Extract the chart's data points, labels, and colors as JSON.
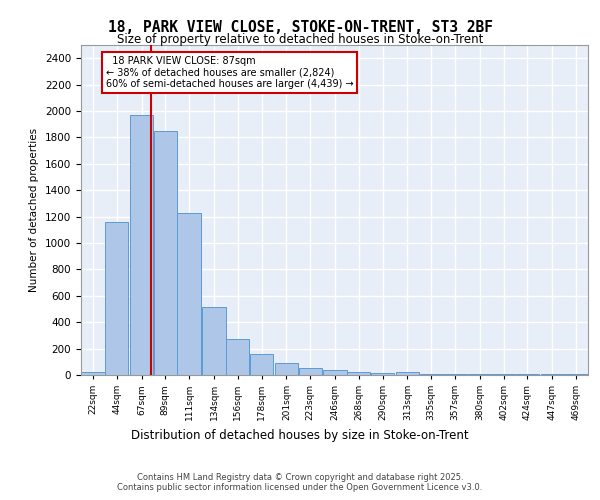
{
  "title_line1": "18, PARK VIEW CLOSE, STOKE-ON-TRENT, ST3 2BF",
  "title_line2": "Size of property relative to detached houses in Stoke-on-Trent",
  "xlabel": "Distribution of detached houses by size in Stoke-on-Trent",
  "ylabel": "Number of detached properties",
  "annotation_line1": "  18 PARK VIEW CLOSE: 87sqm  ",
  "annotation_line2": "← 38% of detached houses are smaller (2,824)",
  "annotation_line3": "60% of semi-detached houses are larger (4,439) →",
  "footer_line1": "Contains HM Land Registry data © Crown copyright and database right 2025.",
  "footer_line2": "Contains public sector information licensed under the Open Government Licence v3.0.",
  "bar_color": "#aec6e8",
  "bar_edge_color": "#5b9bd5",
  "background_color": "#e8eef8",
  "grid_color": "#ffffff",
  "vline_color": "#cc0000",
  "vline_x": 87,
  "categories": [
    "22sqm",
    "44sqm",
    "67sqm",
    "89sqm",
    "111sqm",
    "134sqm",
    "156sqm",
    "178sqm",
    "201sqm",
    "223sqm",
    "246sqm",
    "268sqm",
    "290sqm",
    "313sqm",
    "335sqm",
    "357sqm",
    "380sqm",
    "402sqm",
    "424sqm",
    "447sqm",
    "469sqm"
  ],
  "bin_edges": [
    22,
    44,
    67,
    89,
    111,
    134,
    156,
    178,
    201,
    223,
    246,
    268,
    290,
    313,
    335,
    357,
    380,
    402,
    424,
    447,
    469
  ],
  "values": [
    25,
    1160,
    1970,
    1850,
    1230,
    515,
    275,
    160,
    90,
    50,
    40,
    25,
    15,
    20,
    5,
    5,
    5,
    5,
    5,
    5,
    5
  ],
  "ylim": [
    0,
    2500
  ],
  "yticks": [
    0,
    200,
    400,
    600,
    800,
    1000,
    1200,
    1400,
    1600,
    1800,
    2000,
    2200,
    2400
  ]
}
